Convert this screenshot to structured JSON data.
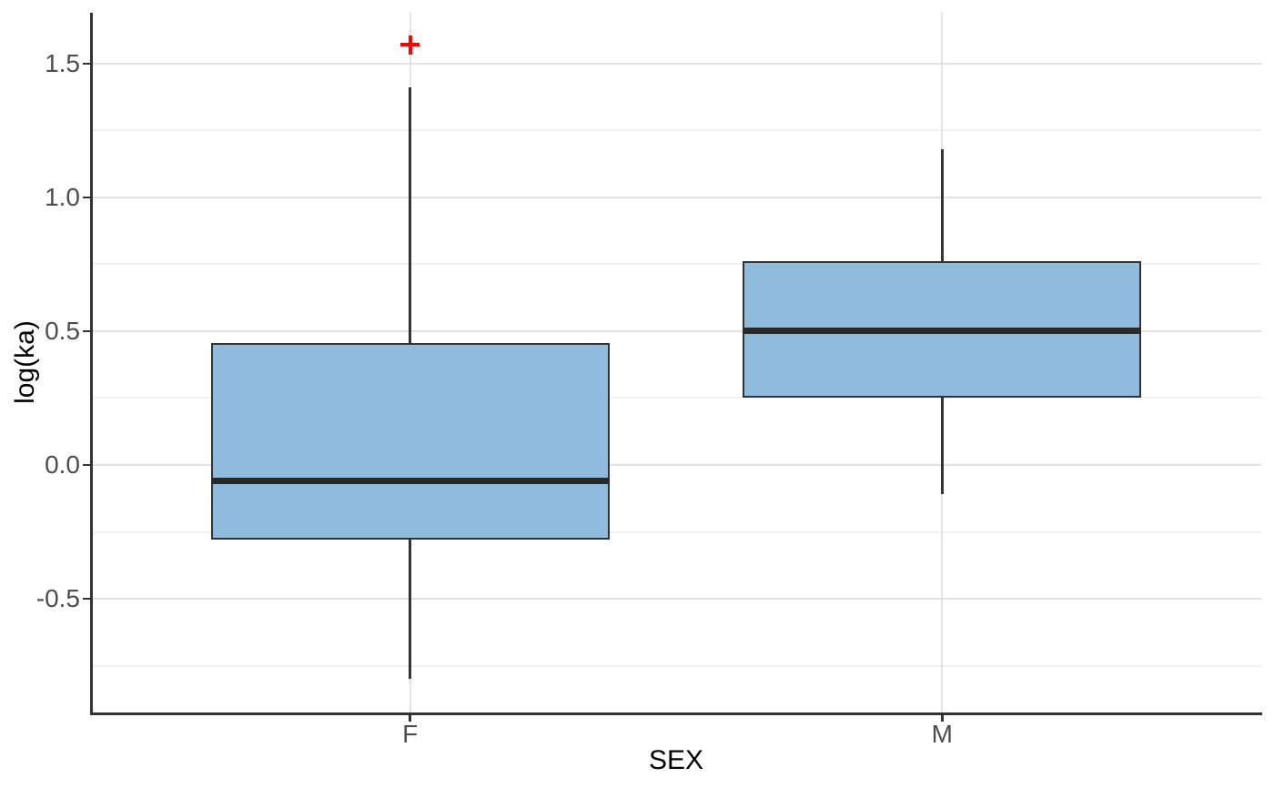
{
  "chart_data": {
    "type": "boxplot",
    "title": "",
    "xlabel": "SEX",
    "ylabel": "log(ka)",
    "categories": [
      "F",
      "M"
    ],
    "boxes": [
      {
        "category": "F",
        "lower_whisker": -0.8,
        "q1": -0.28,
        "median": -0.06,
        "q3": 0.455,
        "upper_whisker": 1.41,
        "outliers": [
          1.57
        ]
      },
      {
        "category": "M",
        "lower_whisker": -0.11,
        "q1": 0.25,
        "median": 0.5,
        "q3": 0.76,
        "upper_whisker": 1.18,
        "outliers": []
      }
    ],
    "ylim": [
      -0.925,
      1.69
    ],
    "yticks": [
      {
        "value": 1.5,
        "label": "1.5"
      },
      {
        "value": 1.0,
        "label": "1.0"
      },
      {
        "value": 0.5,
        "label": "0.5"
      },
      {
        "value": 0.0,
        "label": "0.0"
      },
      {
        "value": -0.5,
        "label": "-0.5"
      }
    ],
    "yticks_minor": [
      1.25,
      0.75,
      0.25,
      -0.25,
      -0.75
    ],
    "grid": {
      "horizontal_major": true,
      "horizontal_minor": true,
      "vertical_major_at_categories": true,
      "vertical_minor": false
    },
    "legend": "none",
    "colors": {
      "box_fill": "#8FBBDC",
      "box_stroke": "#333333",
      "median_stroke": "#2A2A2A",
      "whisker_stroke": "#333333",
      "outlier": "#FF0000",
      "grid_major": "#E2E2E2",
      "grid_minor": "#F1F1F1",
      "axis_line": "#333333",
      "tick_mark": "#333333",
      "tick_text": "#4D4D4D",
      "title_text": "#000000",
      "background": "#FFFFFF"
    }
  }
}
